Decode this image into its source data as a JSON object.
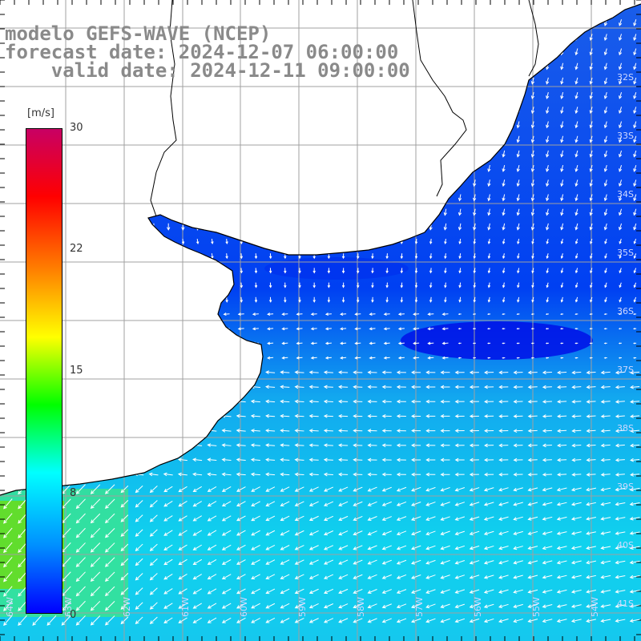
{
  "title": {
    "line1": "modelo GEFS-WAVE (NCEP)",
    "line2": "forecast date: 2024-12-07 06:00:00",
    "line3": "    valid date: 2024-12-11 09:00:00"
  },
  "colorbar": {
    "unit": "[m/s]",
    "ticks": [
      "30",
      "22",
      "15",
      "8",
      "0"
    ],
    "colors": [
      "#0000ff",
      "#0090ff",
      "#00ffff",
      "#00ff00",
      "#ffff00",
      "#ff7f00",
      "#ff0000",
      "#c80064"
    ]
  },
  "lat_labels": [
    "32S",
    "33S",
    "34S",
    "35S",
    "36S",
    "37S",
    "38S",
    "39S",
    "40S",
    "41S"
  ],
  "lon_labels": [
    "64W",
    "63W",
    "62W",
    "61W",
    "60W",
    "59W",
    "58W",
    "57W",
    "56W",
    "55W",
    "54W"
  ],
  "colors": {
    "land": "#ffffff",
    "grid": "#a0a0a0",
    "coastline": "#000000",
    "arrow": "#ffffff",
    "title": "#8a8a8a"
  }
}
